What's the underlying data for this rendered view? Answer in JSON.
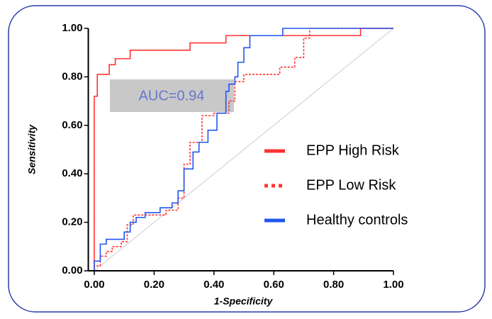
{
  "chart_data": {
    "type": "step-line",
    "x_label": "1-Specificity",
    "y_label": "Sensitivity",
    "annotation": "AUC=0.94",
    "xlim": [
      -0.02,
      1.0
    ],
    "ylim": [
      0,
      1.0
    ],
    "xticks": [
      {
        "value": 0,
        "label": "0.00"
      },
      {
        "value": 0.2,
        "label": "0.20"
      },
      {
        "value": 0.4,
        "label": "0.40"
      },
      {
        "value": 0.6,
        "label": "0.60"
      },
      {
        "value": 0.8,
        "label": "0.80"
      },
      {
        "value": 1.0,
        "label": "1.00"
      }
    ],
    "yticks": [
      {
        "value": 0,
        "label": "0.00"
      },
      {
        "value": 0.2,
        "label": "0.20"
      },
      {
        "value": 0.4,
        "label": "0.40"
      },
      {
        "value": 0.6,
        "label": "0.60"
      },
      {
        "value": 0.8,
        "label": "0.80"
      },
      {
        "value": 1.0,
        "label": "1.00"
      }
    ],
    "reference_diagonal": true,
    "series": [
      {
        "name": "EPP High Risk",
        "color": "#ff3333",
        "dashed": false,
        "x": [
          0,
          0,
          0.01,
          0.01,
          0.05,
          0.05,
          0.07,
          0.07,
          0.12,
          0.12,
          0.32,
          0.32,
          0.44,
          0.44,
          0.89,
          0.89,
          1.0
        ],
        "y": [
          0,
          0.72,
          0.72,
          0.81,
          0.81,
          0.85,
          0.85,
          0.875,
          0.875,
          0.91,
          0.91,
          0.94,
          0.94,
          0.97,
          0.97,
          1.0,
          1.0
        ]
      },
      {
        "name": "EPP Low Risk",
        "color": "#ff3333",
        "dashed": true,
        "x": [
          0,
          0,
          0.02,
          0.02,
          0.04,
          0.04,
          0.06,
          0.06,
          0.09,
          0.09,
          0.11,
          0.11,
          0.13,
          0.13,
          0.24,
          0.24,
          0.28,
          0.28,
          0.3,
          0.3,
          0.32,
          0.32,
          0.36,
          0.36,
          0.4,
          0.4,
          0.45,
          0.45,
          0.47,
          0.47,
          0.5,
          0.5,
          0.62,
          0.62,
          0.67,
          0.67,
          0.7,
          0.7,
          0.72,
          0.72,
          1.0
        ],
        "y": [
          0,
          0.02,
          0.02,
          0.06,
          0.06,
          0.08,
          0.08,
          0.1,
          0.1,
          0.12,
          0.12,
          0.19,
          0.19,
          0.23,
          0.23,
          0.25,
          0.25,
          0.3,
          0.3,
          0.44,
          0.44,
          0.53,
          0.53,
          0.64,
          0.64,
          0.65,
          0.65,
          0.7,
          0.7,
          0.78,
          0.78,
          0.81,
          0.81,
          0.84,
          0.84,
          0.88,
          0.88,
          0.96,
          0.96,
          1.0,
          1.0
        ]
      },
      {
        "name": "Healthy controls",
        "color": "#2255ee",
        "dashed": false,
        "x": [
          0,
          0,
          0.02,
          0.02,
          0.04,
          0.04,
          0.1,
          0.1,
          0.12,
          0.12,
          0.14,
          0.14,
          0.17,
          0.17,
          0.22,
          0.22,
          0.26,
          0.26,
          0.28,
          0.28,
          0.3,
          0.3,
          0.33,
          0.33,
          0.35,
          0.35,
          0.38,
          0.38,
          0.41,
          0.41,
          0.44,
          0.44,
          0.45,
          0.45,
          0.47,
          0.47,
          0.48,
          0.48,
          0.5,
          0.5,
          0.52,
          0.52,
          0.63,
          0.63,
          1.0
        ],
        "y": [
          0,
          0.04,
          0.04,
          0.11,
          0.11,
          0.13,
          0.13,
          0.16,
          0.16,
          0.2,
          0.2,
          0.22,
          0.22,
          0.24,
          0.24,
          0.26,
          0.26,
          0.28,
          0.28,
          0.33,
          0.33,
          0.42,
          0.42,
          0.49,
          0.49,
          0.53,
          0.53,
          0.58,
          0.58,
          0.65,
          0.65,
          0.74,
          0.74,
          0.77,
          0.77,
          0.8,
          0.8,
          0.86,
          0.86,
          0.92,
          0.92,
          0.97,
          0.97,
          1.0,
          1.0
        ]
      }
    ]
  }
}
